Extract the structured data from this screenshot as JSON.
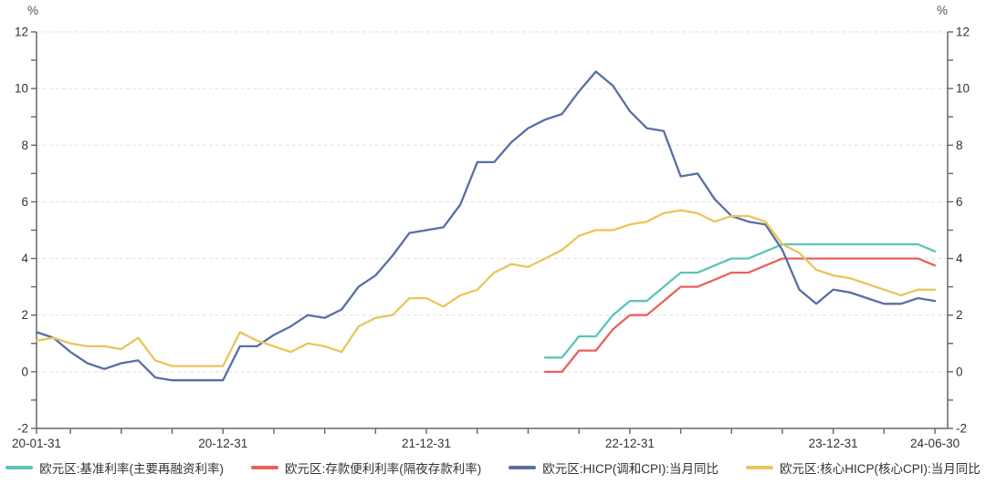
{
  "chart_data": {
    "type": "line",
    "title": "",
    "unit_left": "%",
    "unit_right": "%",
    "ylim": [
      -2,
      12
    ],
    "y_tick_step_minor": 1,
    "y_tick_step_labeled": 2,
    "y_tick_labels": [
      "12",
      "10",
      "8",
      "6",
      "4",
      "2",
      "0",
      "-2"
    ],
    "grid": "horizontal-dashed",
    "legend_position": "bottom",
    "x_axis_span_months": 53.75,
    "x_minor_tick_every_months": 3,
    "x_tick_labels": [
      "20-01-31",
      "20-12-31",
      "21-12-31",
      "22-12-31",
      "23-12-31",
      "24-06-30"
    ],
    "x_label_indices": [
      0,
      11,
      23,
      35,
      47,
      53
    ],
    "axis_color": "#666666",
    "gridline_color": "#e0e0e0",
    "tick_label_color": "#333333",
    "series": [
      {
        "id": "benchmark-rate",
        "name": "欧元区:基准利率(主要再融资利率)",
        "color": "#5BC4BA",
        "start_index": 30,
        "values": [
          0.5,
          0.5,
          1.25,
          1.25,
          2.0,
          2.5,
          2.5,
          3.0,
          3.5,
          3.5,
          3.75,
          4.0,
          4.0,
          4.25,
          4.5,
          4.5,
          4.5,
          4.5,
          4.5,
          4.5,
          4.5,
          4.5,
          4.5,
          4.25
        ]
      },
      {
        "id": "deposit-facility-rate",
        "name": "欧元区:存款便利利率(隔夜存款利率)",
        "color": "#EA615E",
        "start_index": 30,
        "values": [
          0.0,
          0.0,
          0.75,
          0.75,
          1.5,
          2.0,
          2.0,
          2.5,
          3.0,
          3.0,
          3.25,
          3.5,
          3.5,
          3.75,
          4.0,
          4.0,
          4.0,
          4.0,
          4.0,
          4.0,
          4.0,
          4.0,
          4.0,
          3.75
        ]
      },
      {
        "id": "hicp-yoy",
        "name": "欧元区:HICP(调和CPI):当月同比",
        "color": "#5A6EA5",
        "start_index": 0,
        "values": [
          1.4,
          1.2,
          0.7,
          0.3,
          0.1,
          0.3,
          0.4,
          -0.2,
          -0.3,
          -0.3,
          -0.3,
          -0.3,
          0.9,
          0.9,
          1.3,
          1.6,
          2.0,
          1.9,
          2.2,
          3.0,
          3.4,
          4.1,
          4.9,
          5.0,
          5.1,
          5.9,
          7.4,
          7.4,
          8.1,
          8.6,
          8.9,
          9.1,
          9.9,
          10.6,
          10.1,
          9.2,
          8.6,
          8.5,
          6.9,
          7.0,
          6.1,
          5.5,
          5.3,
          5.2,
          4.3,
          2.9,
          2.4,
          2.9,
          2.8,
          2.6,
          2.4,
          2.4,
          2.6,
          2.5
        ]
      },
      {
        "id": "core-hicp-yoy",
        "name": "欧元区:核心HICP(核心CPI):当月同比",
        "color": "#E8C65B",
        "start_index": 0,
        "values": [
          1.1,
          1.2,
          1.0,
          0.9,
          0.9,
          0.8,
          1.2,
          0.4,
          0.2,
          0.2,
          0.2,
          0.2,
          1.4,
          1.1,
          0.9,
          0.7,
          1.0,
          0.9,
          0.7,
          1.6,
          1.9,
          2.0,
          2.6,
          2.6,
          2.3,
          2.7,
          2.9,
          3.5,
          3.8,
          3.7,
          4.0,
          4.3,
          4.8,
          5.0,
          5.0,
          5.2,
          5.3,
          5.6,
          5.7,
          5.6,
          5.3,
          5.5,
          5.5,
          5.3,
          4.5,
          4.2,
          3.6,
          3.4,
          3.3,
          3.1,
          2.9,
          2.7,
          2.9,
          2.9
        ]
      }
    ]
  }
}
